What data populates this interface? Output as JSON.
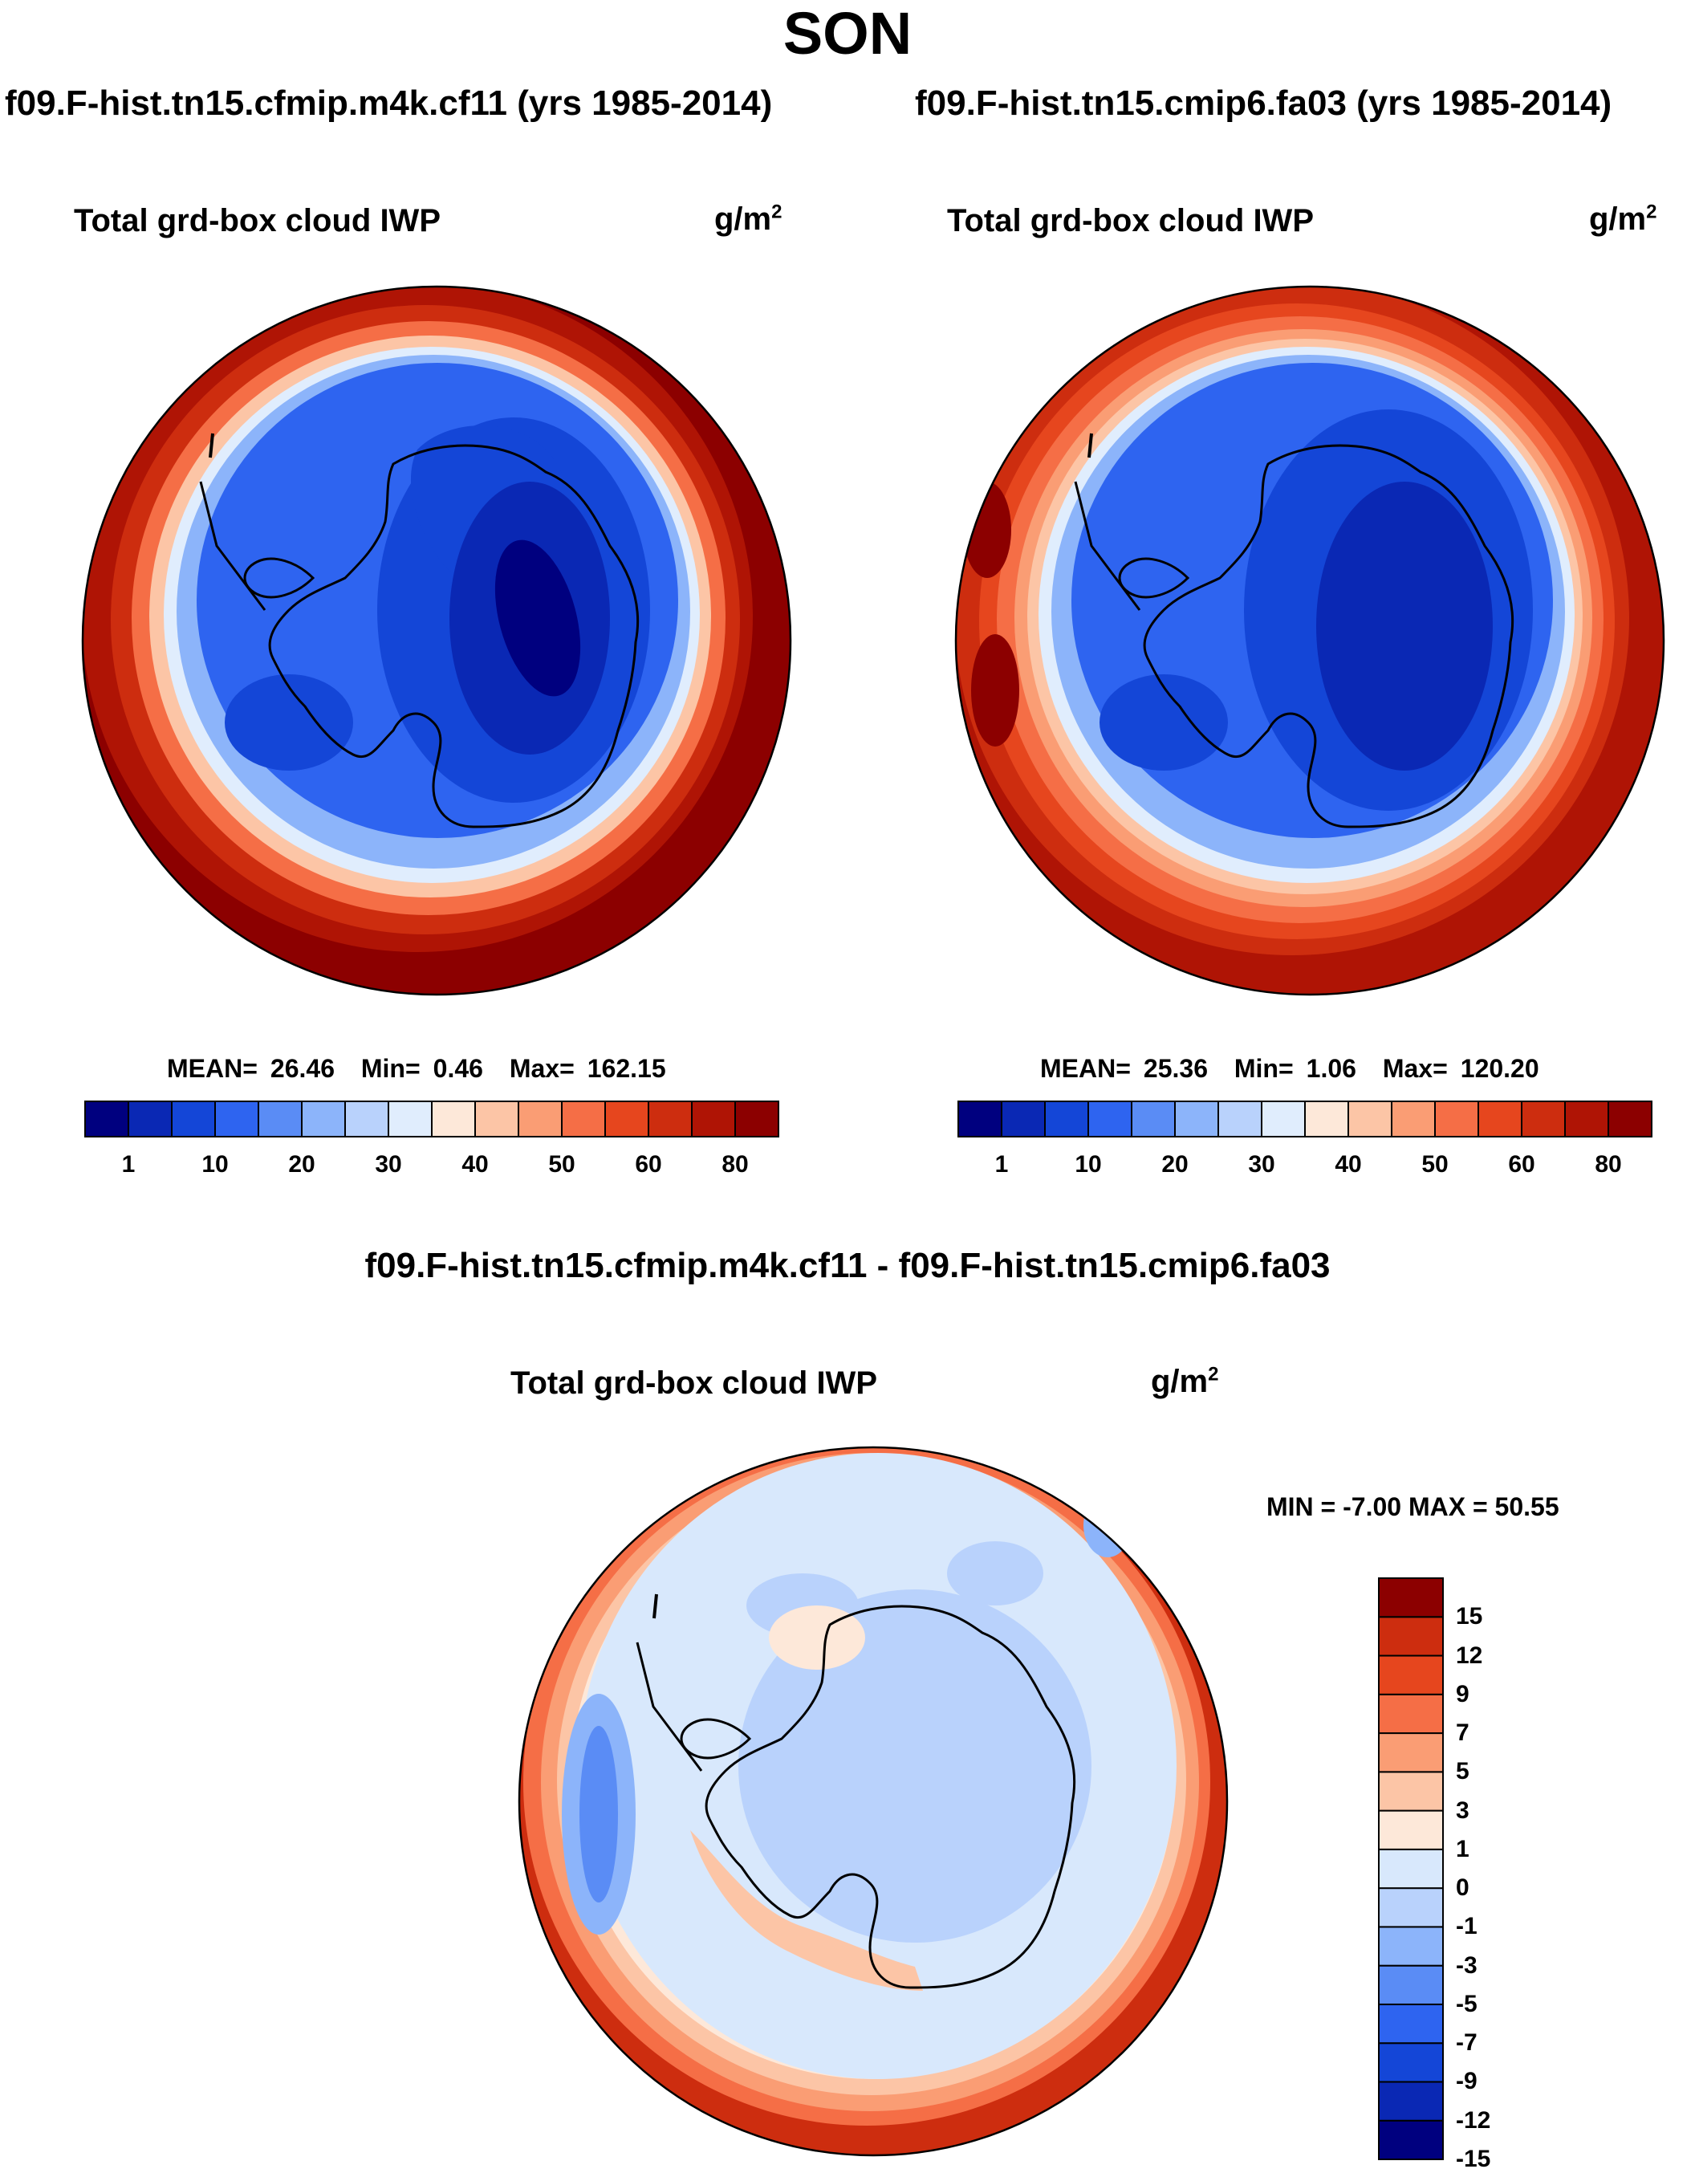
{
  "title": "SON",
  "panels": [
    {
      "run": "f09.F-hist.tn15.cfmip.m4k.cf11 (yrs 1985-2014)",
      "variable": "Total grd-box cloud IWP",
      "units_base": "g/m",
      "units_exp": "2",
      "stats": {
        "mean_label": "MEAN=",
        "mean": "26.46",
        "min_label": "Min=",
        "min": "0.46",
        "max_label": "Max=",
        "max": "162.15"
      }
    },
    {
      "run": "f09.F-hist.tn15.cmip6.fa03 (yrs 1985-2014)",
      "variable": "Total grd-box cloud IWP",
      "units_base": "g/m",
      "units_exp": "2",
      "stats": {
        "mean_label": "MEAN=",
        "mean": "25.36",
        "min_label": "Min=",
        "min": "1.06",
        "max_label": "Max=",
        "max": "120.20"
      }
    }
  ],
  "difference": {
    "title": "f09.F-hist.tn15.cfmip.m4k.cf11 - f09.F-hist.tn15.cmip6.fa03",
    "variable": "Total grd-box cloud IWP",
    "units_base": "g/m",
    "units_exp": "2",
    "minmax": "MIN =  -7.00 MAX =  50.55"
  },
  "colorbar_top": {
    "colors": [
      "#00007f",
      "#0a28b4",
      "#1446d7",
      "#2e64f0",
      "#5a8cf5",
      "#8cb4fa",
      "#b9d2fc",
      "#e0edfd",
      "#fde8d9",
      "#fcc5a6",
      "#fa9d74",
      "#f56e46",
      "#e6461e",
      "#cd2d0f",
      "#af1405",
      "#8c0000"
    ],
    "tick_labels": [
      "1",
      "10",
      "20",
      "30",
      "40",
      "50",
      "60",
      "80"
    ]
  },
  "colorbar_diff": {
    "colors": [
      "#00007f",
      "#0a28b4",
      "#1446d7",
      "#2e64f0",
      "#5a8cf5",
      "#8cb4fa",
      "#b9d2fc",
      "#d8e8fc",
      "#fde8d9",
      "#fcc5a6",
      "#fa9d74",
      "#f56e46",
      "#e6461e",
      "#cd2d0f",
      "#8c0000"
    ],
    "tick_labels": [
      "15",
      "12",
      "9",
      "7",
      "5",
      "3",
      "1",
      "0",
      "-1",
      "-3",
      "-5",
      "-7",
      "-9",
      "-12",
      "-15"
    ]
  }
}
